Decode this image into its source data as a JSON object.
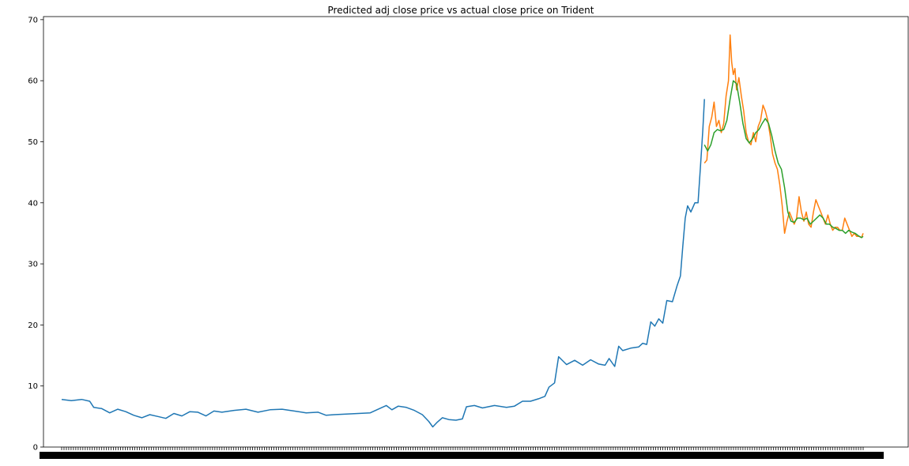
{
  "chart_data": {
    "type": "line",
    "title": "Predicted adj close price vs actual close price on Trident",
    "xlabel": "",
    "ylabel": "",
    "x_tick_labels_note": "dense overlapping date tick labels, unreadable",
    "x_range": [
      0,
      1000
    ],
    "ylim": [
      0,
      70.5
    ],
    "yticks": [
      0,
      10,
      20,
      30,
      40,
      50,
      60,
      70
    ],
    "grid": false,
    "legend": "none",
    "colors": {
      "train": "#1f77b4",
      "actual": "#ff7f0e",
      "predicted": "#2ca02c"
    },
    "series": [
      {
        "key": "train",
        "points": [
          [
            0,
            7.8
          ],
          [
            12,
            7.6
          ],
          [
            25,
            7.8
          ],
          [
            35,
            7.5
          ],
          [
            40,
            6.5
          ],
          [
            50,
            6.3
          ],
          [
            60,
            5.6
          ],
          [
            70,
            6.2
          ],
          [
            80,
            5.8
          ],
          [
            90,
            5.2
          ],
          [
            100,
            4.8
          ],
          [
            110,
            5.3
          ],
          [
            120,
            5.0
          ],
          [
            130,
            4.7
          ],
          [
            140,
            5.5
          ],
          [
            150,
            5.1
          ],
          [
            160,
            5.8
          ],
          [
            170,
            5.7
          ],
          [
            180,
            5.1
          ],
          [
            190,
            5.9
          ],
          [
            200,
            5.7
          ],
          [
            215,
            6.0
          ],
          [
            230,
            6.2
          ],
          [
            245,
            5.7
          ],
          [
            260,
            6.1
          ],
          [
            275,
            6.2
          ],
          [
            290,
            5.9
          ],
          [
            305,
            5.6
          ],
          [
            320,
            5.7
          ],
          [
            330,
            5.2
          ],
          [
            340,
            5.3
          ],
          [
            355,
            5.4
          ],
          [
            370,
            5.5
          ],
          [
            385,
            5.6
          ],
          [
            395,
            6.2
          ],
          [
            405,
            6.8
          ],
          [
            412,
            6.1
          ],
          [
            420,
            6.7
          ],
          [
            430,
            6.5
          ],
          [
            440,
            6.0
          ],
          [
            450,
            5.3
          ],
          [
            458,
            4.2
          ],
          [
            463,
            3.3
          ],
          [
            468,
            4.0
          ],
          [
            475,
            4.8
          ],
          [
            483,
            4.5
          ],
          [
            492,
            4.4
          ],
          [
            500,
            4.6
          ],
          [
            505,
            6.6
          ],
          [
            515,
            6.8
          ],
          [
            525,
            6.4
          ],
          [
            540,
            6.8
          ],
          [
            555,
            6.5
          ],
          [
            565,
            6.7
          ],
          [
            575,
            7.5
          ],
          [
            585,
            7.5
          ],
          [
            595,
            7.9
          ],
          [
            603,
            8.3
          ],
          [
            608,
            9.8
          ],
          [
            615,
            10.5
          ],
          [
            620,
            14.8
          ],
          [
            630,
            13.5
          ],
          [
            640,
            14.2
          ],
          [
            650,
            13.4
          ],
          [
            660,
            14.3
          ],
          [
            670,
            13.6
          ],
          [
            678,
            13.4
          ],
          [
            683,
            14.5
          ],
          [
            690,
            13.2
          ],
          [
            695,
            16.5
          ],
          [
            700,
            15.8
          ],
          [
            710,
            16.2
          ],
          [
            720,
            16.4
          ],
          [
            725,
            17.0
          ],
          [
            730,
            16.8
          ],
          [
            735,
            20.5
          ],
          [
            740,
            19.8
          ],
          [
            745,
            21.0
          ],
          [
            750,
            20.3
          ],
          [
            755,
            24.0
          ],
          [
            762,
            23.8
          ],
          [
            768,
            26.5
          ],
          [
            772,
            28.0
          ],
          [
            775,
            33.0
          ],
          [
            778,
            37.5
          ],
          [
            781,
            39.5
          ],
          [
            785,
            38.5
          ],
          [
            790,
            40.0
          ],
          [
            794,
            40.0
          ],
          [
            797,
            46.0
          ],
          [
            800,
            52.0
          ],
          [
            802,
            57.0
          ]
        ]
      },
      {
        "key": "actual",
        "points": [
          [
            802,
            46.5
          ],
          [
            805,
            47.0
          ],
          [
            808,
            52.5
          ],
          [
            811,
            54.0
          ],
          [
            814,
            56.5
          ],
          [
            817,
            52.5
          ],
          [
            820,
            53.5
          ],
          [
            823,
            51.5
          ],
          [
            826,
            53.0
          ],
          [
            829,
            57.5
          ],
          [
            832,
            60.0
          ],
          [
            834,
            67.5
          ],
          [
            836,
            63.0
          ],
          [
            838,
            61.0
          ],
          [
            840,
            62.0
          ],
          [
            842,
            58.5
          ],
          [
            845,
            60.5
          ],
          [
            848,
            57.5
          ],
          [
            851,
            55.0
          ],
          [
            854,
            51.5
          ],
          [
            857,
            50.0
          ],
          [
            860,
            49.5
          ],
          [
            863,
            51.5
          ],
          [
            866,
            50.0
          ],
          [
            869,
            52.5
          ],
          [
            872,
            53.5
          ],
          [
            875,
            56.0
          ],
          [
            878,
            55.0
          ],
          [
            881,
            53.5
          ],
          [
            884,
            51.0
          ],
          [
            887,
            48.0
          ],
          [
            890,
            46.5
          ],
          [
            893,
            45.5
          ],
          [
            896,
            43.0
          ],
          [
            899,
            39.5
          ],
          [
            902,
            35.0
          ],
          [
            905,
            37.0
          ],
          [
            908,
            38.5
          ],
          [
            911,
            37.5
          ],
          [
            914,
            36.5
          ],
          [
            917,
            37.5
          ],
          [
            920,
            41.0
          ],
          [
            923,
            38.5
          ],
          [
            926,
            37.0
          ],
          [
            929,
            38.5
          ],
          [
            932,
            36.5
          ],
          [
            935,
            36.0
          ],
          [
            938,
            38.5
          ],
          [
            941,
            40.5
          ],
          [
            944,
            39.5
          ],
          [
            947,
            38.5
          ],
          [
            950,
            37.5
          ],
          [
            953,
            36.5
          ],
          [
            956,
            38.0
          ],
          [
            959,
            36.5
          ],
          [
            962,
            35.5
          ],
          [
            965,
            36.0
          ],
          [
            968,
            36.0
          ],
          [
            971,
            35.5
          ],
          [
            974,
            35.5
          ],
          [
            977,
            37.5
          ],
          [
            980,
            36.5
          ],
          [
            983,
            35.5
          ],
          [
            986,
            34.5
          ],
          [
            989,
            35.0
          ],
          [
            992,
            34.5
          ],
          [
            995,
            34.5
          ],
          [
            998,
            34.3
          ],
          [
            1000,
            35.0
          ]
        ]
      },
      {
        "key": "predicted",
        "points": [
          [
            802,
            49.5
          ],
          [
            806,
            48.5
          ],
          [
            810,
            49.5
          ],
          [
            814,
            51.5
          ],
          [
            818,
            52.0
          ],
          [
            822,
            51.8
          ],
          [
            826,
            52.0
          ],
          [
            830,
            53.5
          ],
          [
            834,
            57.0
          ],
          [
            838,
            60.0
          ],
          [
            842,
            59.5
          ],
          [
            846,
            56.5
          ],
          [
            850,
            53.0
          ],
          [
            854,
            50.5
          ],
          [
            858,
            49.8
          ],
          [
            862,
            50.5
          ],
          [
            866,
            51.5
          ],
          [
            870,
            52.0
          ],
          [
            874,
            53.0
          ],
          [
            878,
            53.8
          ],
          [
            882,
            53.0
          ],
          [
            886,
            51.0
          ],
          [
            890,
            48.5
          ],
          [
            894,
            46.5
          ],
          [
            898,
            45.5
          ],
          [
            902,
            42.5
          ],
          [
            906,
            38.5
          ],
          [
            910,
            37.0
          ],
          [
            914,
            36.8
          ],
          [
            918,
            37.5
          ],
          [
            922,
            37.5
          ],
          [
            926,
            37.2
          ],
          [
            930,
            37.5
          ],
          [
            934,
            36.5
          ],
          [
            938,
            37.0
          ],
          [
            942,
            37.5
          ],
          [
            946,
            38.0
          ],
          [
            950,
            37.5
          ],
          [
            954,
            36.5
          ],
          [
            958,
            36.5
          ],
          [
            962,
            36.0
          ],
          [
            966,
            35.8
          ],
          [
            970,
            35.5
          ],
          [
            974,
            35.5
          ],
          [
            978,
            35.0
          ],
          [
            982,
            35.5
          ],
          [
            986,
            35.2
          ],
          [
            990,
            35.0
          ],
          [
            994,
            34.6
          ],
          [
            998,
            34.3
          ],
          [
            1000,
            34.5
          ]
        ]
      }
    ]
  }
}
